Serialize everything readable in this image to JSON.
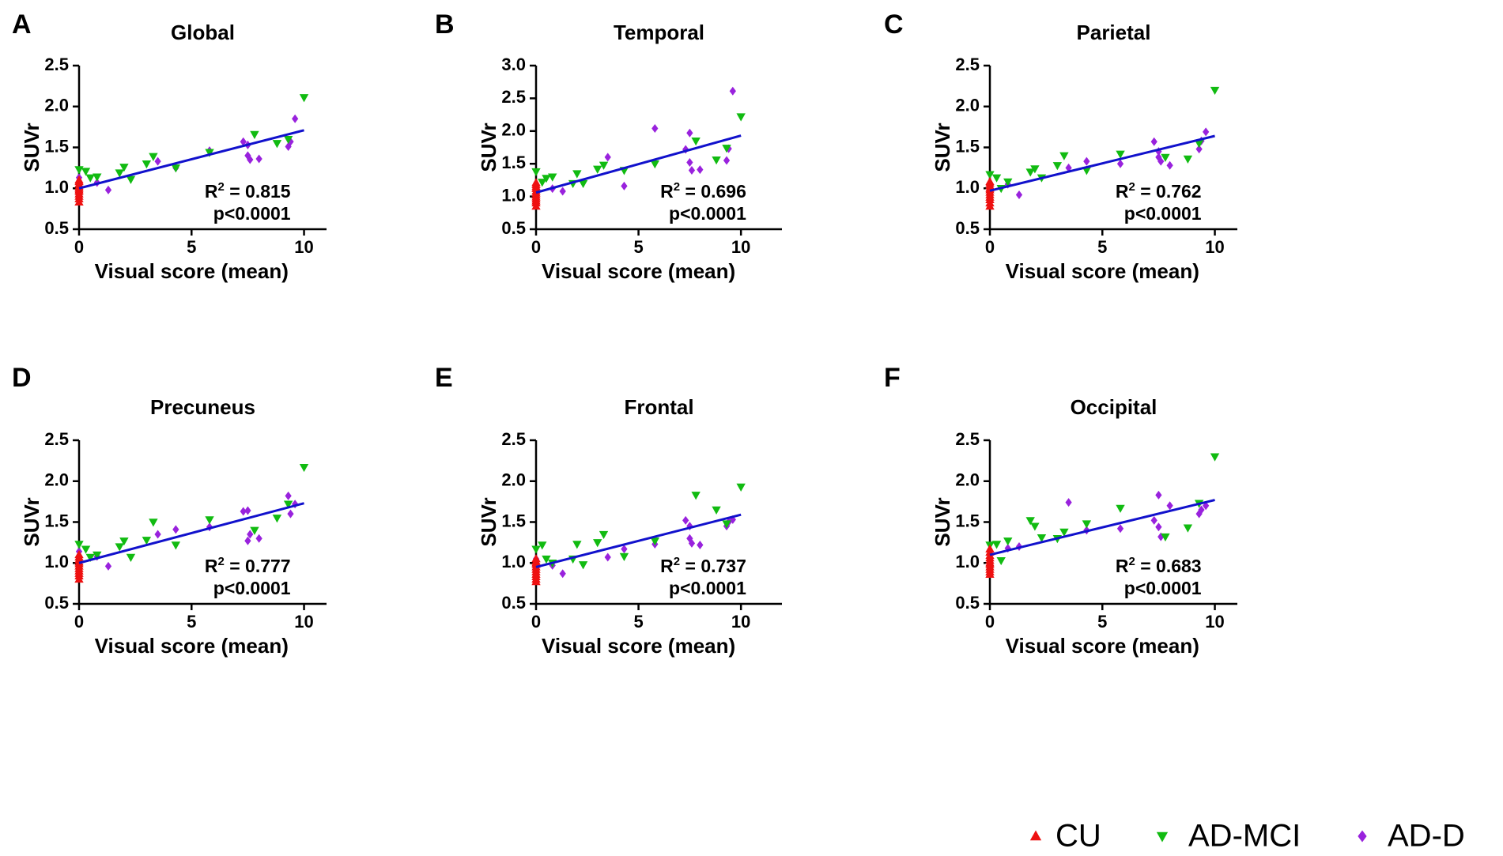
{
  "legend": [
    {
      "label": "CU",
      "marker": "triangle-up",
      "color": "#ee1111"
    },
    {
      "label": "AD-MCI",
      "marker": "triangle-down",
      "color": "#11bb11"
    },
    {
      "label": "AD-D",
      "marker": "diamond",
      "color": "#9922dd"
    }
  ],
  "line_color": "#1111cc",
  "chart_data": [
    {
      "panel": "A",
      "type": "scatter",
      "title": "Global",
      "xlabel": "Visual score (mean)",
      "ylabel": "SUVr",
      "xlim": [
        0,
        11
      ],
      "ylim": [
        0.5,
        2.5
      ],
      "xticks": [
        0,
        5,
        10
      ],
      "xtick_labels": [
        "0",
        "5",
        "10"
      ],
      "yticks": [
        0.5,
        1.0,
        1.5,
        2.0,
        2.5
      ],
      "ytick_labels": [
        "0.5",
        "1.0",
        "1.5",
        "2.0",
        "2.5"
      ],
      "r2_prefix": "R",
      "r2_exp": "2",
      "r2_value": " = 0.815",
      "p_text": "p<0.0001",
      "fit": {
        "x": [
          0,
          10
        ],
        "y": [
          1.0,
          1.71
        ]
      },
      "series": [
        {
          "name": "CU",
          "x": [
            0,
            0,
            0,
            0,
            0,
            0,
            0,
            0,
            0,
            0,
            0
          ],
          "y": [
            0.83,
            0.87,
            0.9,
            0.93,
            0.96,
            0.98,
            1.0,
            1.02,
            1.05,
            1.08,
            1.1
          ]
        },
        {
          "name": "AD-MCI",
          "x": [
            0,
            0.3,
            0.5,
            0.8,
            1.8,
            2.0,
            2.3,
            3.0,
            3.3,
            4.3,
            5.8,
            7.8,
            8.8,
            9.3,
            10.0
          ],
          "y": [
            1.23,
            1.21,
            1.13,
            1.14,
            1.19,
            1.26,
            1.11,
            1.3,
            1.39,
            1.25,
            1.44,
            1.66,
            1.55,
            1.6,
            2.11
          ]
        },
        {
          "name": "AD-D",
          "x": [
            0,
            0.8,
            1.3,
            3.5,
            4.3,
            5.8,
            7.3,
            7.5,
            7.5,
            7.6,
            8.0,
            9.3,
            9.4,
            9.6
          ],
          "y": [
            1.13,
            1.07,
            0.98,
            1.33,
            1.25,
            1.46,
            1.57,
            1.53,
            1.4,
            1.35,
            1.36,
            1.51,
            1.57,
            1.85
          ]
        }
      ]
    },
    {
      "panel": "B",
      "type": "scatter",
      "title": "Temporal",
      "xlabel": "Visual score (mean)",
      "ylabel": "SUVr",
      "xlim": [
        0,
        12
      ],
      "ylim": [
        0.5,
        3.0
      ],
      "xticks": [
        0,
        5,
        10
      ],
      "xtick_labels": [
        "0",
        "5",
        "10"
      ],
      "yticks": [
        0.5,
        1.0,
        1.5,
        2.0,
        2.5,
        3.0
      ],
      "ytick_labels": [
        "0.5",
        "1.0",
        "1.5",
        "2.0",
        "2.5",
        "3.0"
      ],
      "r2_prefix": "R",
      "r2_exp": "2",
      "r2_value": " = 0.696",
      "p_text": "p<0.0001",
      "fit": {
        "x": [
          0,
          10
        ],
        "y": [
          1.06,
          1.93
        ]
      },
      "series": [
        {
          "name": "CU",
          "x": [
            0,
            0,
            0,
            0,
            0,
            0,
            0,
            0,
            0,
            0,
            0,
            0
          ],
          "y": [
            0.85,
            0.9,
            0.93,
            0.96,
            0.99,
            1.02,
            1.05,
            1.08,
            1.12,
            1.15,
            1.18,
            1.21
          ]
        },
        {
          "name": "AD-MCI",
          "x": [
            0,
            0.3,
            0.5,
            0.8,
            1.8,
            2.0,
            2.3,
            3.0,
            3.3,
            4.3,
            5.8,
            7.8,
            8.8,
            9.3,
            10.0
          ],
          "y": [
            1.38,
            1.22,
            1.28,
            1.3,
            1.2,
            1.35,
            1.2,
            1.42,
            1.48,
            1.4,
            1.5,
            1.85,
            1.56,
            1.74,
            2.22
          ]
        },
        {
          "name": "AD-D",
          "x": [
            0,
            0.8,
            1.3,
            3.5,
            4.3,
            5.8,
            7.3,
            7.5,
            7.5,
            7.6,
            8.0,
            9.3,
            9.4,
            9.6
          ],
          "y": [
            1.0,
            1.12,
            1.08,
            1.6,
            1.16,
            2.04,
            1.72,
            1.97,
            1.52,
            1.4,
            1.41,
            1.55,
            1.73,
            2.61
          ]
        }
      ]
    },
    {
      "panel": "C",
      "type": "scatter",
      "title": "Parietal",
      "xlabel": "Visual score (mean)",
      "ylabel": "SUVr",
      "xlim": [
        0,
        11
      ],
      "ylim": [
        0.5,
        2.5
      ],
      "xticks": [
        0,
        5,
        10
      ],
      "xtick_labels": [
        "0",
        "5",
        "10"
      ],
      "yticks": [
        0.5,
        1.0,
        1.5,
        2.0,
        2.5
      ],
      "ytick_labels": [
        "0.5",
        "1.0",
        "1.5",
        "2.0",
        "2.5"
      ],
      "r2_prefix": "R",
      "r2_exp": "2",
      "r2_value": " = 0.762",
      "p_text": "p<0.0001",
      "fit": {
        "x": [
          0,
          10
        ],
        "y": [
          0.97,
          1.64
        ]
      },
      "series": [
        {
          "name": "CU",
          "x": [
            0,
            0,
            0,
            0,
            0,
            0,
            0,
            0,
            0,
            0,
            0
          ],
          "y": [
            0.78,
            0.82,
            0.86,
            0.89,
            0.92,
            0.95,
            0.98,
            1.0,
            1.03,
            1.06,
            1.08
          ]
        },
        {
          "name": "AD-MCI",
          "x": [
            0,
            0.3,
            0.5,
            0.8,
            1.8,
            2.0,
            2.3,
            3.0,
            3.3,
            4.3,
            5.8,
            7.8,
            8.8,
            9.3,
            10.0
          ],
          "y": [
            1.17,
            1.13,
            1.0,
            1.08,
            1.2,
            1.24,
            1.13,
            1.28,
            1.4,
            1.22,
            1.42,
            1.38,
            1.36,
            1.55,
            2.2
          ]
        },
        {
          "name": "AD-D",
          "x": [
            0,
            0.8,
            1.3,
            3.5,
            4.3,
            5.8,
            7.3,
            7.5,
            7.5,
            7.6,
            8.0,
            9.3,
            9.4,
            9.6
          ],
          "y": [
            1.02,
            1.05,
            0.92,
            1.25,
            1.33,
            1.3,
            1.57,
            1.45,
            1.38,
            1.33,
            1.28,
            1.48,
            1.58,
            1.69
          ]
        }
      ]
    },
    {
      "panel": "D",
      "type": "scatter",
      "title": "Precuneus",
      "xlabel": "Visual score (mean)",
      "ylabel": "SUVr",
      "xlim": [
        0,
        11
      ],
      "ylim": [
        0.5,
        2.5
      ],
      "xticks": [
        0,
        5,
        10
      ],
      "xtick_labels": [
        "0",
        "5",
        "10"
      ],
      "yticks": [
        0.5,
        1.0,
        1.5,
        2.0,
        2.5
      ],
      "ytick_labels": [
        "0.5",
        "1.0",
        "1.5",
        "2.0",
        "2.5"
      ],
      "r2_prefix": "R",
      "r2_exp": "2",
      "r2_value": " = 0.777",
      "p_text": "p<0.0001",
      "fit": {
        "x": [
          0,
          10
        ],
        "y": [
          1.0,
          1.73
        ]
      },
      "series": [
        {
          "name": "CU",
          "x": [
            0,
            0,
            0,
            0,
            0,
            0,
            0,
            0,
            0,
            0,
            0
          ],
          "y": [
            0.8,
            0.84,
            0.87,
            0.9,
            0.93,
            0.96,
            0.99,
            1.01,
            1.04,
            1.07,
            1.1
          ]
        },
        {
          "name": "AD-MCI",
          "x": [
            0,
            0.3,
            0.5,
            0.8,
            1.8,
            2.0,
            2.3,
            3.0,
            3.3,
            4.3,
            5.8,
            7.8,
            8.8,
            9.3,
            10.0
          ],
          "y": [
            1.23,
            1.17,
            1.07,
            1.1,
            1.2,
            1.27,
            1.07,
            1.28,
            1.5,
            1.22,
            1.53,
            1.4,
            1.55,
            1.72,
            2.17
          ]
        },
        {
          "name": "AD-D",
          "x": [
            0,
            0.8,
            1.3,
            3.5,
            4.3,
            5.8,
            7.3,
            7.5,
            7.5,
            7.6,
            8.0,
            9.3,
            9.4,
            9.6
          ],
          "y": [
            1.14,
            1.08,
            0.96,
            1.35,
            1.41,
            1.44,
            1.63,
            1.64,
            1.27,
            1.35,
            1.3,
            1.82,
            1.6,
            1.72
          ]
        }
      ]
    },
    {
      "panel": "E",
      "type": "scatter",
      "title": "Frontal",
      "xlabel": "Visual score (mean)",
      "ylabel": "SUVr",
      "xlim": [
        0,
        12
      ],
      "ylim": [
        0.5,
        2.5
      ],
      "xticks": [
        0,
        5,
        10
      ],
      "xtick_labels": [
        "0",
        "5",
        "10"
      ],
      "yticks": [
        0.5,
        1.0,
        1.5,
        2.0,
        2.5
      ],
      "ytick_labels": [
        "0.5",
        "1.0",
        "1.5",
        "2.0",
        "2.5"
      ],
      "r2_prefix": "R",
      "r2_exp": "2",
      "r2_value": " = 0.737",
      "p_text": "p<0.0001",
      "fit": {
        "x": [
          0,
          10
        ],
        "y": [
          0.95,
          1.59
        ]
      },
      "series": [
        {
          "name": "CU",
          "x": [
            0,
            0,
            0,
            0,
            0,
            0,
            0,
            0,
            0,
            0,
            0
          ],
          "y": [
            0.77,
            0.8,
            0.83,
            0.86,
            0.89,
            0.92,
            0.95,
            0.98,
            1.0,
            1.02,
            1.05
          ]
        },
        {
          "name": "AD-MCI",
          "x": [
            0,
            0.3,
            0.5,
            0.8,
            1.8,
            2.0,
            2.3,
            3.0,
            3.3,
            4.3,
            5.8,
            7.8,
            8.8,
            9.3,
            10.0
          ],
          "y": [
            1.17,
            1.22,
            1.05,
            1.0,
            1.05,
            1.23,
            0.98,
            1.25,
            1.35,
            1.08,
            1.27,
            1.83,
            1.65,
            1.48,
            1.93
          ]
        },
        {
          "name": "AD-D",
          "x": [
            0,
            0.8,
            1.3,
            3.5,
            4.3,
            5.8,
            7.3,
            7.5,
            7.5,
            7.6,
            8.0,
            9.3,
            9.4,
            9.6
          ],
          "y": [
            1.05,
            0.97,
            0.87,
            1.07,
            1.17,
            1.23,
            1.52,
            1.45,
            1.3,
            1.24,
            1.22,
            1.45,
            1.5,
            1.53
          ]
        }
      ]
    },
    {
      "panel": "F",
      "type": "scatter",
      "title": "Occipital",
      "xlabel": "Visual score (mean)",
      "ylabel": "SUVr",
      "xlim": [
        0,
        11
      ],
      "ylim": [
        0.5,
        2.5
      ],
      "xticks": [
        0,
        5,
        10
      ],
      "xtick_labels": [
        "0",
        "5",
        "10"
      ],
      "yticks": [
        0.5,
        1.0,
        1.5,
        2.0,
        2.5
      ],
      "ytick_labels": [
        "0.5",
        "1.0",
        "1.5",
        "2.0",
        "2.5"
      ],
      "r2_prefix": "R",
      "r2_exp": "2",
      "r2_value": " = 0.683",
      "p_text": "p<0.0001",
      "fit": {
        "x": [
          0,
          10
        ],
        "y": [
          1.1,
          1.77
        ]
      },
      "series": [
        {
          "name": "CU",
          "x": [
            0,
            0,
            0,
            0,
            0,
            0,
            0,
            0,
            0,
            0,
            0
          ],
          "y": [
            0.86,
            0.89,
            0.92,
            0.95,
            0.98,
            1.0,
            1.03,
            1.06,
            1.09,
            1.13,
            1.17
          ]
        },
        {
          "name": "AD-MCI",
          "x": [
            0,
            0.3,
            0.5,
            0.8,
            1.8,
            2.0,
            2.3,
            3.0,
            3.3,
            4.3,
            5.8,
            7.8,
            8.8,
            9.3,
            10.0
          ],
          "y": [
            1.22,
            1.23,
            1.03,
            1.27,
            1.52,
            1.45,
            1.31,
            1.3,
            1.38,
            1.48,
            1.67,
            1.32,
            1.43,
            1.73,
            2.3
          ]
        },
        {
          "name": "AD-D",
          "x": [
            0,
            0.8,
            1.3,
            3.5,
            4.3,
            5.8,
            7.3,
            7.5,
            7.5,
            7.6,
            8.0,
            9.3,
            9.4,
            9.6
          ],
          "y": [
            1.1,
            1.18,
            1.2,
            1.74,
            1.4,
            1.42,
            1.52,
            1.83,
            1.44,
            1.32,
            1.7,
            1.6,
            1.65,
            1.7
          ]
        }
      ]
    }
  ]
}
